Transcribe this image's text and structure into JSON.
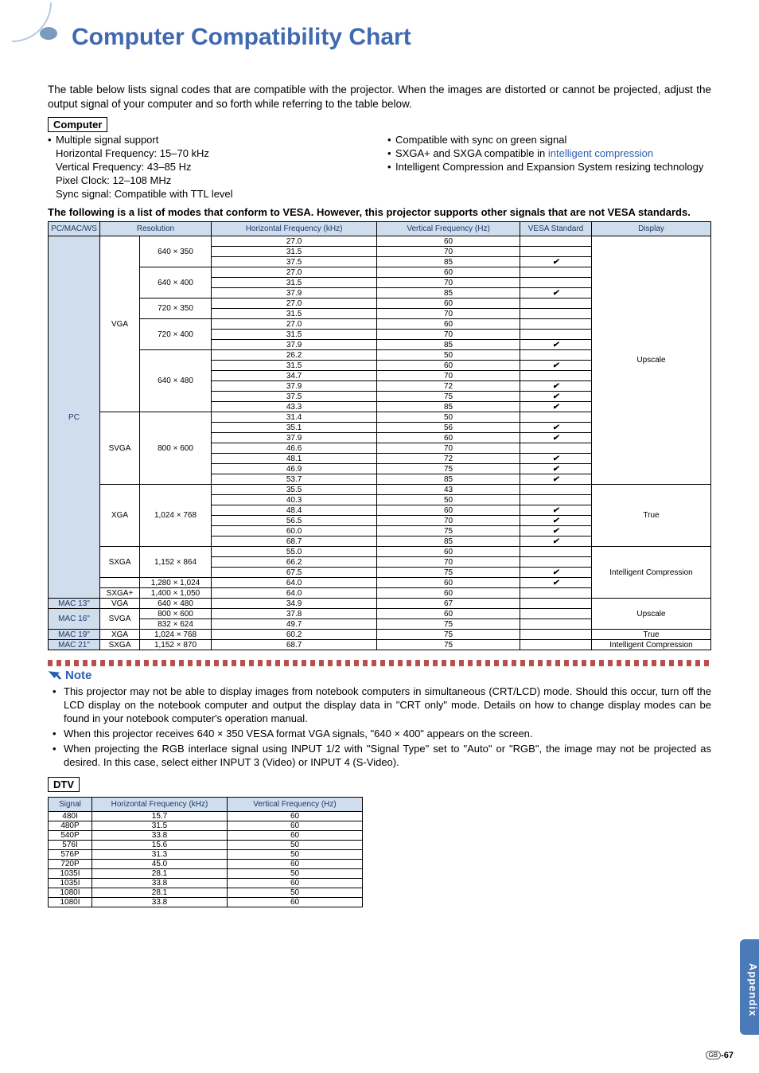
{
  "title": "Computer Compatibility Chart",
  "intro": "The table below lists signal codes that are compatible with the projector. When the images are distorted or cannot be projected, adjust the output signal of your computer and so forth while referring to the table below.",
  "computer": {
    "label": "Computer",
    "left": {
      "l1": "Multiple signal support",
      "l2": "Horizontal Frequency: 15–70 kHz",
      "l3": "Vertical Frequency: 43–85 Hz",
      "l4": "Pixel Clock: 12–108 MHz",
      "l5": "Sync signal: Compatible with TTL level"
    },
    "right": {
      "r1": "Compatible with sync on green signal",
      "r2a": "SXGA+ and SXGA compatible in ",
      "r2b": "intelligent compression",
      "r3": "Intelligent Compression and Expansion System resizing technology"
    }
  },
  "vesa_note": "The following is a list of modes that conform to VESA.  However, this projector supports other signals that are not VESA standards.",
  "headers": {
    "pcmac": "PC/MAC/WS",
    "resolution": "Resolution",
    "hfreq": "Horizontal Frequency (kHz)",
    "vfreq": "Vertical Frequency (Hz)",
    "vesa": "VESA Standard",
    "display": "Display"
  },
  "group_pc": "PC",
  "pc_blocks": [
    {
      "mode": "VGA",
      "mode_span": 16,
      "res_groups": [
        {
          "res": "640 × 350",
          "rows": [
            [
              "27.0",
              "60",
              ""
            ],
            [
              "31.5",
              "70",
              ""
            ],
            [
              "37.5",
              "85",
              "✔"
            ]
          ]
        },
        {
          "res": "640 × 400",
          "rows": [
            [
              "27.0",
              "60",
              ""
            ],
            [
              "31.5",
              "70",
              ""
            ],
            [
              "37.9",
              "85",
              "✔"
            ]
          ]
        },
        {
          "res": "720 × 350",
          "rows": [
            [
              "27.0",
              "60",
              ""
            ],
            [
              "31.5",
              "70",
              ""
            ]
          ]
        },
        {
          "res": "720 × 400",
          "rows": [
            [
              "27.0",
              "60",
              ""
            ],
            [
              "31.5",
              "70",
              ""
            ],
            [
              "37.9",
              "85",
              "✔"
            ]
          ]
        },
        {
          "res": "640 × 480",
          "rows": [
            [
              "26.2",
              "50",
              ""
            ],
            [
              "31.5",
              "60",
              "✔"
            ],
            [
              "34.7",
              "70",
              ""
            ],
            [
              "37.9",
              "72",
              "✔"
            ],
            [
              "37.5",
              "75",
              "✔"
            ],
            [
              "43.3",
              "85",
              "✔"
            ]
          ]
        }
      ],
      "disp": "Upscale",
      "disp_start": 0,
      "disp_span": 24
    },
    {
      "mode": "SVGA",
      "mode_span": 7,
      "res_groups": [
        {
          "res": "800 × 600",
          "rows": [
            [
              "31.4",
              "50",
              ""
            ],
            [
              "35.1",
              "56",
              "✔"
            ],
            [
              "37.9",
              "60",
              "✔"
            ],
            [
              "46.6",
              "70",
              ""
            ],
            [
              "48.1",
              "72",
              "✔"
            ],
            [
              "46.9",
              "75",
              "✔"
            ],
            [
              "53.7",
              "85",
              "✔"
            ]
          ]
        }
      ]
    },
    {
      "mode": "XGA",
      "mode_span": 6,
      "res_groups": [
        {
          "res": "1,024 × 768",
          "rows": [
            [
              "35.5",
              "43",
              ""
            ],
            [
              "40.3",
              "50",
              ""
            ],
            [
              "48.4",
              "60",
              "✔"
            ],
            [
              "56.5",
              "70",
              "✔"
            ],
            [
              "60.0",
              "75",
              "✔"
            ],
            [
              "68.7",
              "85",
              "✔"
            ]
          ]
        }
      ],
      "disp": "True",
      "disp_span": 6
    },
    {
      "mode": "SXGA",
      "mode_span": 3,
      "res_groups": [
        {
          "res": "1,152 × 864",
          "rows": [
            [
              "55.0",
              "60",
              ""
            ],
            [
              "66.2",
              "70",
              ""
            ],
            [
              "67.5",
              "75",
              "✔"
            ]
          ]
        }
      ],
      "disp": "Intelligent Compression",
      "disp_span": 5
    },
    {
      "mode": "",
      "mode_span": 1,
      "res_groups": [
        {
          "res": "1,280 × 1,024",
          "rows": [
            [
              "64.0",
              "60",
              "✔"
            ]
          ]
        }
      ],
      "mode_label": ""
    },
    {
      "mode": "SXGA+",
      "mode_span": 1,
      "res_groups": [
        {
          "res": "1,400 × 1,050",
          "rows": [
            [
              "64.0",
              "60",
              ""
            ]
          ]
        }
      ]
    }
  ],
  "mac_rows": [
    {
      "pc": "MAC 13\"",
      "mode": "VGA",
      "res": "640 × 480",
      "h": "34.9",
      "v": "67",
      "vesa": "",
      "disp": "Upscale",
      "disp_span": 3
    },
    {
      "pc": "MAC 16\"",
      "mode": "SVGA",
      "res": "800 × 600",
      "h": "37.8",
      "v": "60",
      "vesa": "",
      "pc_span": 2,
      "mode_span": 2
    },
    {
      "pc": "",
      "mode": "",
      "res": "832 × 624",
      "h": "49.7",
      "v": "75",
      "vesa": ""
    },
    {
      "pc": "MAC 19\"",
      "mode": "XGA",
      "res": "1,024 × 768",
      "h": "60.2",
      "v": "75",
      "vesa": "",
      "disp": "True"
    },
    {
      "pc": "MAC 21\"",
      "mode": "SXGA",
      "res": "1,152 × 870",
      "h": "68.7",
      "v": "75",
      "vesa": "",
      "disp": "Intelligent Compression"
    }
  ],
  "note": {
    "label": "Note",
    "items": [
      "This projector may not be able to display images from notebook computers in simultaneous (CRT/LCD) mode. Should this occur, turn off the LCD display on the notebook computer and output the display data in \"CRT only\" mode. Details on how to change display modes can be found in your notebook computer's operation manual.",
      "When this projector receives 640 × 350 VESA format VGA signals, \"640 × 400\" appears on the screen.",
      "When projecting the RGB interlace signal using INPUT 1/2 with \"Signal Type\" set to \"Auto\" or \"RGB\", the image may not be projected as desired. In this case, select either INPUT 3 (Video) or INPUT 4 (S-Video)."
    ]
  },
  "dtv": {
    "label": "DTV",
    "headers": {
      "signal": "Signal",
      "hfreq": "Horizontal Frequency (kHz)",
      "vfreq": "Vertical Frequency (Hz)"
    },
    "rows": [
      [
        "480I",
        "15.7",
        "60"
      ],
      [
        "480P",
        "31.5",
        "60"
      ],
      [
        "540P",
        "33.8",
        "60"
      ],
      [
        "576I",
        "15.6",
        "50"
      ],
      [
        "576P",
        "31.3",
        "50"
      ],
      [
        "720P",
        "45.0",
        "60"
      ],
      [
        "1035I",
        "28.1",
        "50"
      ],
      [
        "1035I",
        "33.8",
        "60"
      ],
      [
        "1080I",
        "28.1",
        "50"
      ],
      [
        "1080I",
        "33.8",
        "60"
      ]
    ]
  },
  "side_tab": "Appendix",
  "page_num_gb": "GB",
  "page_num": "-67"
}
